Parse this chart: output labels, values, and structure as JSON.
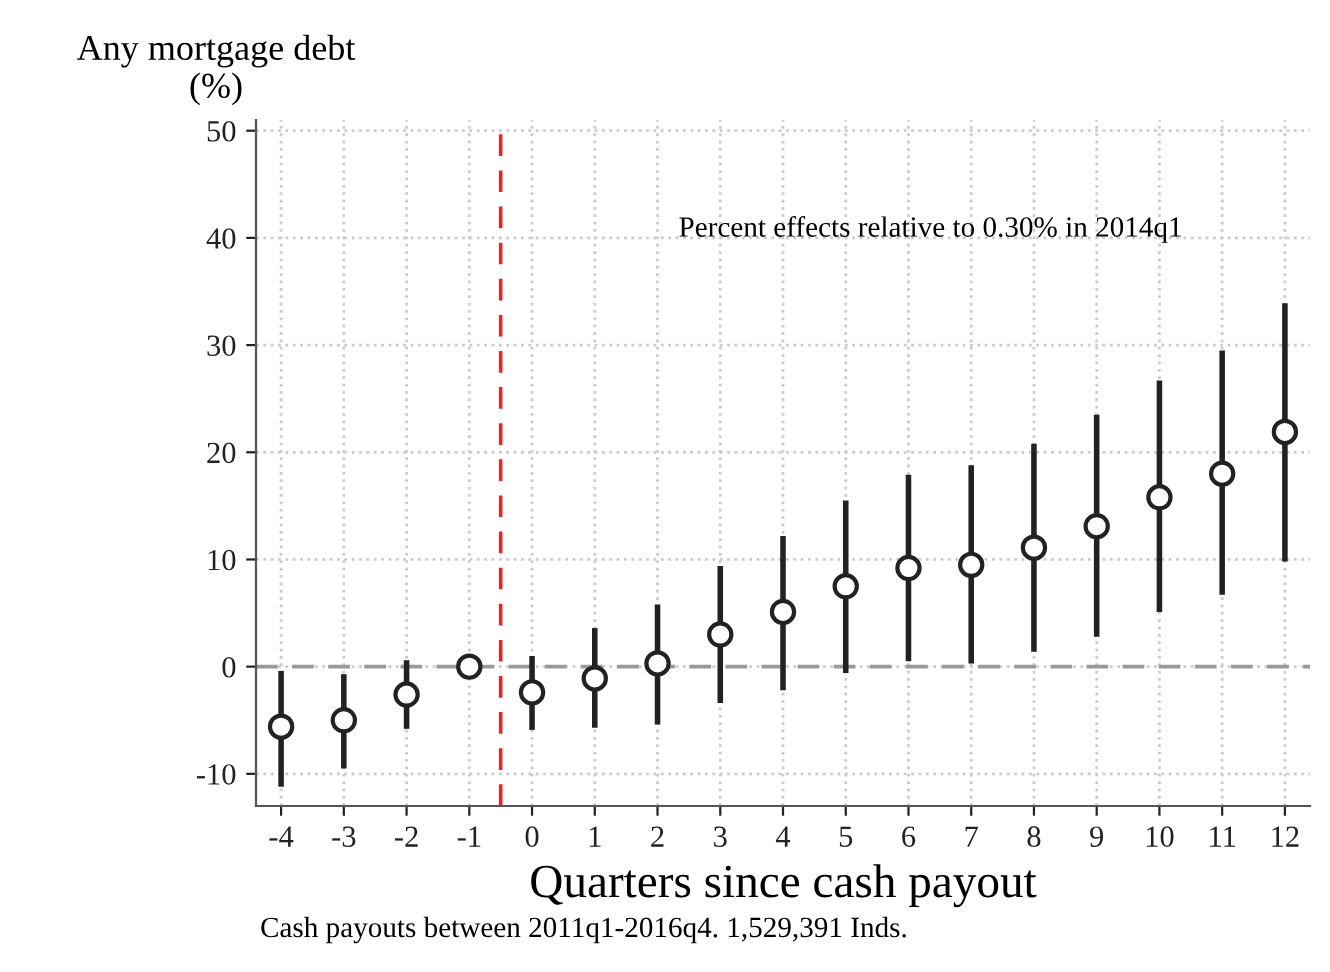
{
  "chart_data": {
    "type": "scatter",
    "ylabel": "Any mortgage debt\n(%)",
    "xlabel": "Quarters since cash payout",
    "annotations": [
      "Percent effects relative to 0.30% in 2014q1",
      "Cash payouts between 2011q1-2016q4. 1,529,391 Inds."
    ],
    "x": [
      -4,
      -3,
      -2,
      -1,
      0,
      1,
      2,
      3,
      4,
      5,
      6,
      7,
      8,
      9,
      10,
      11,
      12
    ],
    "series": [
      {
        "color": "#222222",
        "values": [
          -5.6,
          -5.0,
          -2.6,
          0,
          -2.4,
          -1.1,
          0.3,
          3.0,
          5.1,
          7.5,
          9.2,
          9.5,
          11.1,
          13.1,
          15.8,
          18.0,
          21.9
        ],
        "errors": [
          [
            -11.2,
            -0.4
          ],
          [
            -9.5,
            -0.7
          ],
          [
            -5.8,
            0.6
          ],
          null,
          [
            -5.9,
            1.0
          ],
          [
            -5.7,
            3.6
          ],
          [
            -5.4,
            5.8
          ],
          [
            -3.4,
            9.4
          ],
          [
            -2.2,
            12.2
          ],
          [
            -0.6,
            15.5
          ],
          [
            0.5,
            17.9
          ],
          [
            0.3,
            18.8
          ],
          [
            1.4,
            20.8
          ],
          [
            2.8,
            23.5
          ],
          [
            5.1,
            26.7
          ],
          [
            6.7,
            29.5
          ],
          [
            9.8,
            33.9
          ]
        ]
      }
    ],
    "marker": "circle",
    "xlim": [
      -4.4,
      12.4
    ],
    "ylim": [
      -13,
      51
    ],
    "xticks": [
      -4,
      -3,
      -2,
      -1,
      0,
      1,
      2,
      3,
      4,
      5,
      6,
      7,
      8,
      9,
      10,
      11,
      12
    ],
    "yticks": [
      -10,
      0,
      10,
      20,
      30,
      40,
      50
    ],
    "grid": true,
    "ref_lines": [
      {
        "axis": "y",
        "value": 0,
        "color": "#999999",
        "line_style": "dashed"
      },
      {
        "axis": "x",
        "value": -0.5,
        "color": "#ee2222",
        "line_style": "dashed"
      }
    ]
  }
}
